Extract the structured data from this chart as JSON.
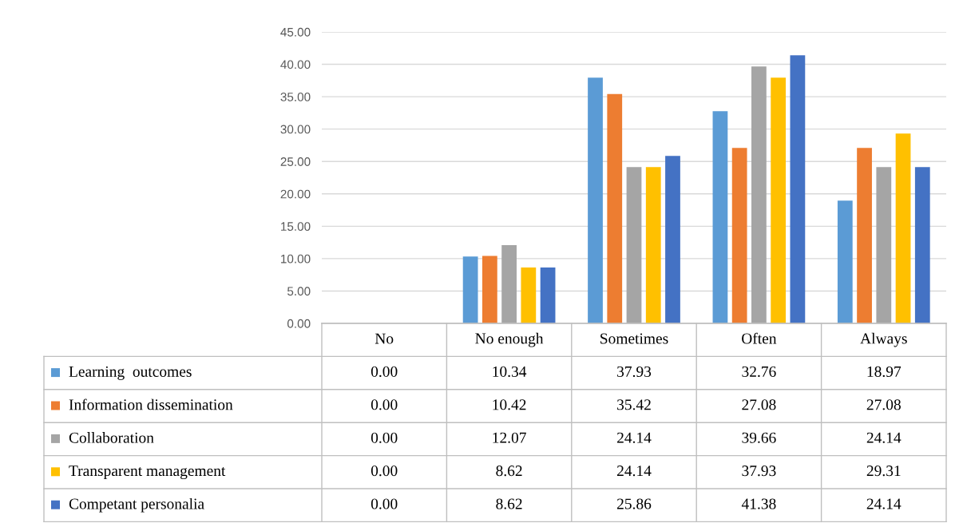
{
  "chart_data": {
    "type": "bar",
    "categories": [
      "No",
      "No enough",
      "Sometimes",
      "Often",
      "Always"
    ],
    "series": [
      {
        "name": "Learning  outcomes",
        "color": "#5b9bd5",
        "values": [
          0.0,
          10.34,
          37.93,
          32.76,
          18.97
        ],
        "value_labels": [
          "0.00",
          "10.34",
          "37.93",
          "32.76",
          "18.97"
        ]
      },
      {
        "name": "Information dissemination",
        "color": "#ed7d31",
        "values": [
          0.0,
          10.42,
          35.42,
          27.08,
          27.08
        ],
        "value_labels": [
          "0.00",
          "10.42",
          "35.42",
          "27.08",
          "27.08"
        ]
      },
      {
        "name": "Collaboration",
        "color": "#a5a5a5",
        "values": [
          0.0,
          12.07,
          24.14,
          39.66,
          24.14
        ],
        "value_labels": [
          "0.00",
          "12.07",
          "24.14",
          "39.66",
          "24.14"
        ]
      },
      {
        "name": "Transparent management",
        "color": "#ffc000",
        "values": [
          0.0,
          8.62,
          24.14,
          37.93,
          29.31
        ],
        "value_labels": [
          "0.00",
          "8.62",
          "24.14",
          "37.93",
          "29.31"
        ]
      },
      {
        "name": "Competant personalia",
        "color": "#4472c4",
        "values": [
          0.0,
          8.62,
          25.86,
          41.38,
          24.14
        ],
        "value_labels": [
          "0.00",
          "8.62",
          "25.86",
          "41.38",
          "24.14"
        ]
      }
    ],
    "ylim": [
      0,
      45
    ],
    "yticks": [
      {
        "value": 0,
        "label": "0.00"
      },
      {
        "value": 5,
        "label": "5.00"
      },
      {
        "value": 10,
        "label": "10.00"
      },
      {
        "value": 15,
        "label": "15.00"
      },
      {
        "value": 20,
        "label": "20.00"
      },
      {
        "value": 25,
        "label": "25.00"
      },
      {
        "value": 30,
        "label": "30.00"
      },
      {
        "value": 35,
        "label": "35.00"
      },
      {
        "value": 40,
        "label": "40.00"
      },
      {
        "value": 45,
        "label": "45.00"
      }
    ],
    "grid": "y",
    "legend": "bottom"
  }
}
